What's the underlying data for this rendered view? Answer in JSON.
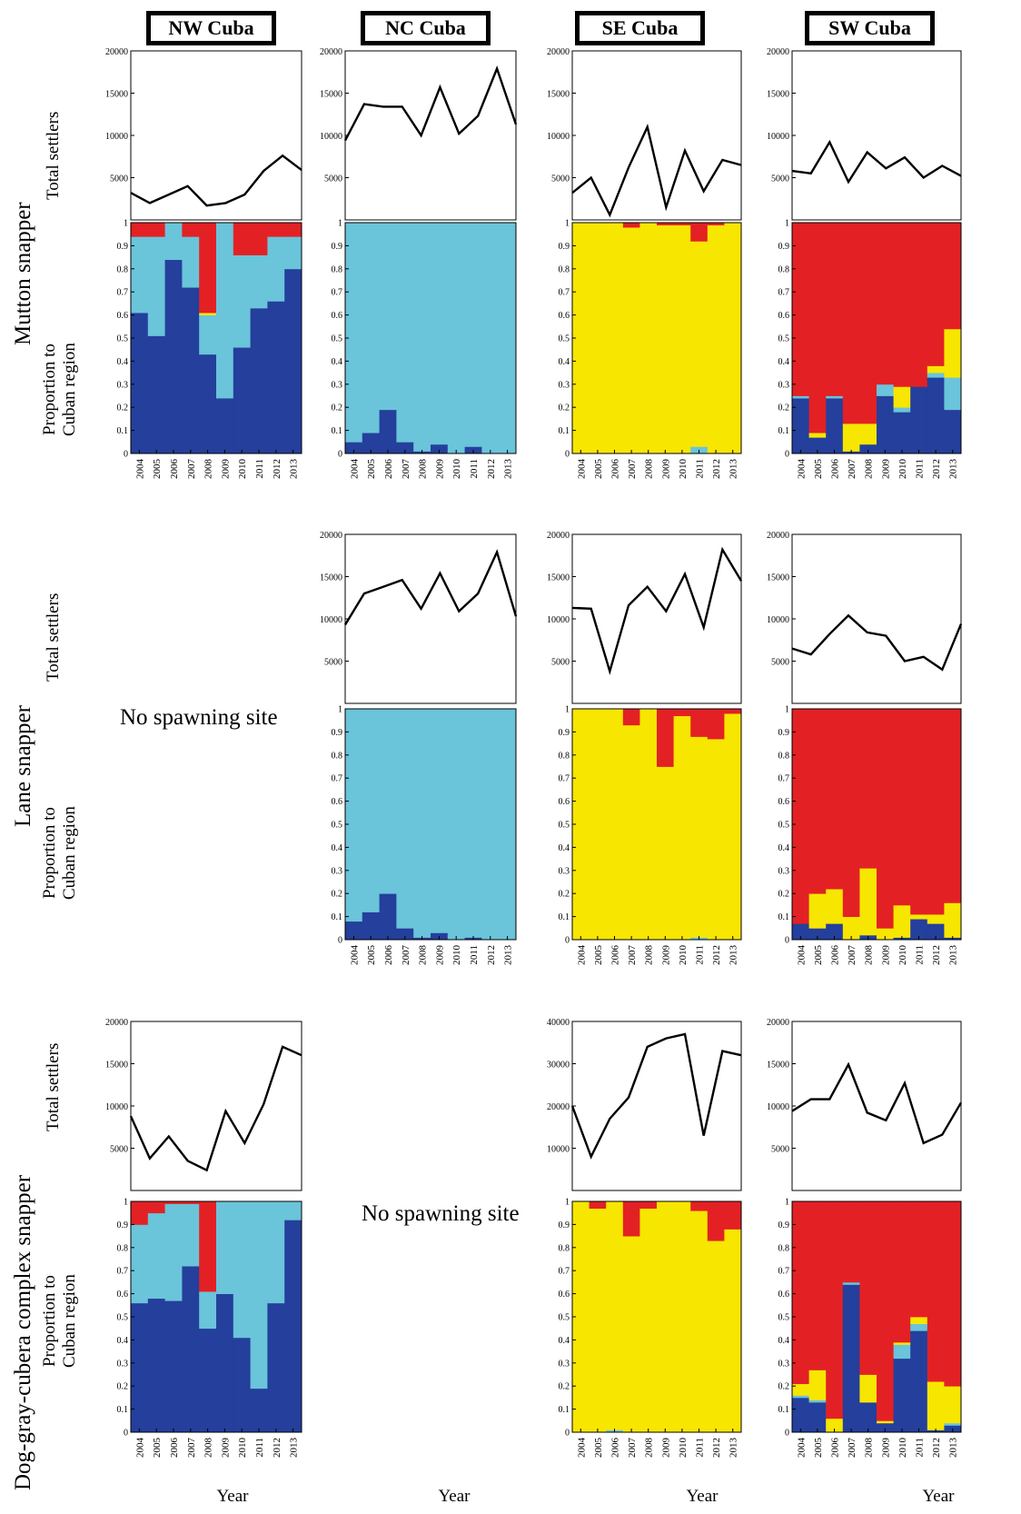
{
  "header": {
    "columns": [
      {
        "label": "NW Cuba",
        "color": "#243f9c"
      },
      {
        "label": "NC Cuba",
        "color": "#6ac4da"
      },
      {
        "label": "SE Cuba",
        "color": "#f7e600"
      },
      {
        "label": "SW Cuba",
        "color": "#e32124"
      }
    ]
  },
  "species": [
    {
      "name": "Mutton snapper"
    },
    {
      "name": "Lane snapper"
    },
    {
      "name": "Dog-gray-cubera complex snapper"
    }
  ],
  "labels": {
    "total_settlers": "Total settlers",
    "proportion_line1": "Proportion to",
    "proportion_line2": "Cuban region",
    "no_spawning": "No spawning site",
    "year": "Year"
  },
  "region_colors": {
    "NW": "#243f9c",
    "NC": "#6ac4da",
    "SE": "#f7e600",
    "SW": "#e32124"
  },
  "chart_data": {
    "years": [
      "2004",
      "2005",
      "2006",
      "2007",
      "2008",
      "2009",
      "2010",
      "2011",
      "2012",
      "2013"
    ],
    "line_panels": [
      {
        "species": "Mutton snapper",
        "region": "NW Cuba",
        "type": "line",
        "ylim": [
          0,
          20000
        ],
        "yticks": [
          5000,
          10000,
          15000,
          20000
        ],
        "values": [
          3200,
          2000,
          3000,
          4000,
          1700,
          2000,
          3000,
          5800,
          7600,
          5900
        ]
      },
      {
        "species": "Mutton snapper",
        "region": "NC Cuba",
        "type": "line",
        "ylim": [
          0,
          20000
        ],
        "yticks": [
          5000,
          10000,
          15000,
          20000
        ],
        "values": [
          9400,
          13700,
          13400,
          13400,
          10000,
          15700,
          10200,
          12300,
          17900,
          11300
        ]
      },
      {
        "species": "Mutton snapper",
        "region": "SE Cuba",
        "type": "line",
        "ylim": [
          0,
          20000
        ],
        "yticks": [
          5000,
          10000,
          15000,
          20000
        ],
        "values": [
          3200,
          5000,
          600,
          6200,
          11000,
          1500,
          8200,
          3400,
          7100,
          6500
        ]
      },
      {
        "species": "Mutton snapper",
        "region": "SW Cuba",
        "type": "line",
        "ylim": [
          0,
          20000
        ],
        "yticks": [
          5000,
          10000,
          15000,
          20000
        ],
        "values": [
          5800,
          5500,
          9200,
          4500,
          8000,
          6100,
          7400,
          5000,
          6400,
          5200
        ]
      },
      {
        "species": "Lane snapper",
        "region": "NC Cuba",
        "type": "line",
        "ylim": [
          0,
          20000
        ],
        "yticks": [
          5000,
          10000,
          15000,
          20000
        ],
        "values": [
          9300,
          13000,
          13800,
          14600,
          11200,
          15400,
          10900,
          13000,
          17900,
          10300
        ]
      },
      {
        "species": "Lane snapper",
        "region": "SE Cuba",
        "type": "line",
        "ylim": [
          0,
          20000
        ],
        "yticks": [
          5000,
          10000,
          15000,
          20000
        ],
        "values": [
          11300,
          11200,
          3800,
          11600,
          13800,
          10900,
          15300,
          9000,
          18200,
          14500
        ]
      },
      {
        "species": "Lane snapper",
        "region": "SW Cuba",
        "type": "line",
        "ylim": [
          0,
          20000
        ],
        "yticks": [
          5000,
          10000,
          15000,
          20000
        ],
        "values": [
          6500,
          5800,
          8200,
          10400,
          8400,
          8000,
          5000,
          5500,
          4000,
          9400
        ]
      },
      {
        "species": "Dog-gray-cubera complex snapper",
        "region": "NW Cuba",
        "type": "line",
        "ylim": [
          0,
          20000
        ],
        "yticks": [
          5000,
          10000,
          15000,
          20000
        ],
        "values": [
          8800,
          3800,
          6400,
          3500,
          2400,
          9400,
          5600,
          10200,
          17000,
          16000
        ]
      },
      {
        "species": "Dog-gray-cubera complex snapper",
        "region": "SE Cuba",
        "type": "line",
        "ylim": [
          0,
          40000
        ],
        "yticks": [
          10000,
          20000,
          30000,
          40000
        ],
        "values": [
          20000,
          8000,
          17000,
          22000,
          34000,
          36000,
          37000,
          13000,
          33000,
          32000
        ]
      },
      {
        "species": "Dog-gray-cubera complex snapper",
        "region": "SW Cuba",
        "type": "line",
        "ylim": [
          0,
          20000
        ],
        "yticks": [
          5000,
          10000,
          15000,
          20000
        ],
        "values": [
          9400,
          10800,
          10800,
          14900,
          9200,
          8300,
          12700,
          5600,
          6600,
          10400
        ]
      }
    ],
    "bar_panels": [
      {
        "species": "Mutton snapper",
        "region": "NW Cuba",
        "type": "stacked-bar",
        "ylim": [
          0,
          1
        ],
        "series": [
          {
            "name": "NW",
            "values": [
              0.61,
              0.51,
              0.84,
              0.72,
              0.43,
              0.24,
              0.46,
              0.63,
              0.66,
              0.8
            ]
          },
          {
            "name": "NC",
            "values": [
              0.33,
              0.43,
              0.16,
              0.22,
              0.17,
              0.76,
              0.4,
              0.23,
              0.28,
              0.14
            ]
          },
          {
            "name": "SE",
            "values": [
              0,
              0,
              0,
              0,
              0.01,
              0,
              0,
              0,
              0,
              0
            ]
          },
          {
            "name": "SW",
            "values": [
              0.06,
              0.06,
              0,
              0.06,
              0.39,
              0,
              0.14,
              0.14,
              0.06,
              0.06
            ]
          }
        ]
      },
      {
        "species": "Mutton snapper",
        "region": "NC Cuba",
        "type": "stacked-bar",
        "ylim": [
          0,
          1
        ],
        "series": [
          {
            "name": "NW",
            "values": [
              0.05,
              0.09,
              0.19,
              0.05,
              0.01,
              0.04,
              0,
              0.03,
              0,
              0
            ]
          },
          {
            "name": "NC",
            "values": [
              0.95,
              0.91,
              0.81,
              0.95,
              0.99,
              0.96,
              1,
              0.97,
              1,
              1
            ]
          },
          {
            "name": "SE",
            "values": [
              0,
              0,
              0,
              0,
              0,
              0,
              0,
              0,
              0,
              0
            ]
          },
          {
            "name": "SW",
            "values": [
              0,
              0,
              0,
              0,
              0,
              0,
              0,
              0,
              0,
              0
            ]
          }
        ]
      },
      {
        "species": "Mutton snapper",
        "region": "SE Cuba",
        "type": "stacked-bar",
        "ylim": [
          0,
          1
        ],
        "series": [
          {
            "name": "NW",
            "values": [
              0,
              0,
              0,
              0,
              0,
              0,
              0,
              0,
              0,
              0
            ]
          },
          {
            "name": "NC",
            "values": [
              0,
              0,
              0,
              0,
              0,
              0,
              0,
              0.03,
              0,
              0
            ]
          },
          {
            "name": "SE",
            "values": [
              1,
              1,
              1,
              0.98,
              1,
              0.99,
              0.99,
              0.89,
              0.99,
              1
            ]
          },
          {
            "name": "SW",
            "values": [
              0,
              0,
              0,
              0.02,
              0,
              0.01,
              0.01,
              0.08,
              0.01,
              0
            ]
          }
        ]
      },
      {
        "species": "Mutton snapper",
        "region": "SW Cuba",
        "type": "stacked-bar",
        "ylim": [
          0,
          1
        ],
        "series": [
          {
            "name": "NW",
            "values": [
              0.24,
              0.07,
              0.24,
              0.01,
              0.04,
              0.25,
              0.18,
              0.29,
              0.33,
              0.19
            ]
          },
          {
            "name": "NC",
            "values": [
              0.01,
              0,
              0.01,
              0,
              0,
              0.05,
              0.02,
              0,
              0.02,
              0.14
            ]
          },
          {
            "name": "SE",
            "values": [
              0,
              0.02,
              0,
              0.12,
              0.09,
              0,
              0.09,
              0,
              0.03,
              0.21
            ]
          },
          {
            "name": "SW",
            "values": [
              0.75,
              0.91,
              0.75,
              0.87,
              0.87,
              0.7,
              0.71,
              0.71,
              0.62,
              0.46
            ]
          }
        ]
      },
      {
        "species": "Lane snapper",
        "region": "NC Cuba",
        "type": "stacked-bar",
        "ylim": [
          0,
          1
        ],
        "series": [
          {
            "name": "NW",
            "values": [
              0.08,
              0.12,
              0.2,
              0.05,
              0.01,
              0.03,
              0,
              0.01,
              0,
              0
            ]
          },
          {
            "name": "NC",
            "values": [
              0.92,
              0.88,
              0.8,
              0.95,
              0.99,
              0.97,
              1,
              0.99,
              1,
              1
            ]
          },
          {
            "name": "SE",
            "values": [
              0,
              0,
              0,
              0,
              0,
              0,
              0,
              0,
              0,
              0
            ]
          },
          {
            "name": "SW",
            "values": [
              0,
              0,
              0,
              0,
              0,
              0,
              0,
              0,
              0,
              0
            ]
          }
        ]
      },
      {
        "species": "Lane snapper",
        "region": "SE Cuba",
        "type": "stacked-bar",
        "ylim": [
          0,
          1
        ],
        "series": [
          {
            "name": "NW",
            "values": [
              0,
              0,
              0,
              0,
              0,
              0,
              0,
              0,
              0,
              0
            ]
          },
          {
            "name": "NC",
            "values": [
              0,
              0,
              0,
              0,
              0,
              0,
              0,
              0.01,
              0,
              0
            ]
          },
          {
            "name": "SE",
            "values": [
              1,
              1,
              1,
              0.93,
              1,
              0.75,
              0.97,
              0.87,
              0.87,
              0.98
            ]
          },
          {
            "name": "SW",
            "values": [
              0,
              0,
              0,
              0.07,
              0,
              0.25,
              0.03,
              0.12,
              0.13,
              0.02
            ]
          }
        ]
      },
      {
        "species": "Lane snapper",
        "region": "SW Cuba",
        "type": "stacked-bar",
        "ylim": [
          0,
          1
        ],
        "series": [
          {
            "name": "NW",
            "values": [
              0.07,
              0.05,
              0.07,
              0,
              0.02,
              0,
              0.01,
              0.09,
              0.07,
              0.01
            ]
          },
          {
            "name": "NC",
            "values": [
              0,
              0,
              0,
              0,
              0,
              0,
              0,
              0,
              0,
              0
            ]
          },
          {
            "name": "SE",
            "values": [
              0,
              0.15,
              0.15,
              0.1,
              0.29,
              0.05,
              0.14,
              0.02,
              0.04,
              0.15
            ]
          },
          {
            "name": "SW",
            "values": [
              0.93,
              0.8,
              0.78,
              0.9,
              0.69,
              0.95,
              0.85,
              0.89,
              0.89,
              0.84
            ]
          }
        ]
      },
      {
        "species": "Dog-gray-cubera complex snapper",
        "region": "NW Cuba",
        "type": "stacked-bar",
        "ylim": [
          0,
          1
        ],
        "series": [
          {
            "name": "NW",
            "values": [
              0.56,
              0.58,
              0.57,
              0.72,
              0.45,
              0.6,
              0.41,
              0.19,
              0.56,
              0.92
            ]
          },
          {
            "name": "NC",
            "values": [
              0.34,
              0.37,
              0.42,
              0.27,
              0.16,
              0.4,
              0.59,
              0.81,
              0.44,
              0.08
            ]
          },
          {
            "name": "SE",
            "values": [
              0,
              0,
              0,
              0,
              0,
              0,
              0,
              0,
              0,
              0
            ]
          },
          {
            "name": "SW",
            "values": [
              0.1,
              0.05,
              0.01,
              0.01,
              0.39,
              0,
              0,
              0,
              0,
              0
            ]
          }
        ]
      },
      {
        "species": "Dog-gray-cubera complex snapper",
        "region": "SE Cuba",
        "type": "stacked-bar",
        "ylim": [
          0,
          1
        ],
        "series": [
          {
            "name": "NW",
            "values": [
              0,
              0,
              0,
              0,
              0,
              0,
              0,
              0,
              0,
              0
            ]
          },
          {
            "name": "NC",
            "values": [
              0,
              0,
              0.01,
              0,
              0,
              0,
              0,
              0,
              0,
              0
            ]
          },
          {
            "name": "SE",
            "values": [
              1,
              0.97,
              0.99,
              0.85,
              0.97,
              1,
              1,
              0.96,
              0.83,
              0.88
            ]
          },
          {
            "name": "SW",
            "values": [
              0,
              0.03,
              0,
              0.15,
              0.03,
              0,
              0,
              0.04,
              0.17,
              0.12
            ]
          }
        ]
      },
      {
        "species": "Dog-gray-cubera complex snapper",
        "region": "SW Cuba",
        "type": "stacked-bar",
        "ylim": [
          0,
          1
        ],
        "series": [
          {
            "name": "NW",
            "values": [
              0.15,
              0.13,
              0,
              0.64,
              0.13,
              0.04,
              0.32,
              0.44,
              0.01,
              0.03
            ]
          },
          {
            "name": "NC",
            "values": [
              0.01,
              0.01,
              0,
              0.01,
              0,
              0,
              0.06,
              0.03,
              0,
              0.01
            ]
          },
          {
            "name": "SE",
            "values": [
              0.05,
              0.13,
              0.06,
              0,
              0.12,
              0.01,
              0.01,
              0.03,
              0.21,
              0.16
            ]
          },
          {
            "name": "SW",
            "values": [
              0.79,
              0.73,
              0.94,
              0.35,
              0.75,
              0.95,
              0.61,
              0.5,
              0.78,
              0.8
            ]
          }
        ]
      }
    ]
  }
}
